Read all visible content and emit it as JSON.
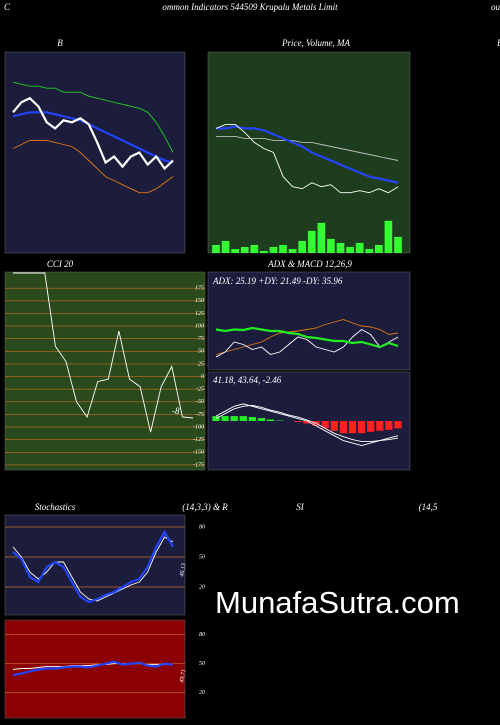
{
  "header": {
    "left": "C",
    "title": "ommon  Indicators 544509 Krupalu  Metals Limit",
    "right": "ou",
    "edge": "B"
  },
  "watermark": "MunafaSutra.com",
  "chart_data": [
    {
      "type": "line",
      "title": "B",
      "ylim": [
        0,
        100
      ],
      "series": [
        {
          "color": "#22cc22",
          "values": [
            85,
            84,
            83,
            83,
            82,
            82,
            80,
            80,
            80,
            78,
            77,
            76,
            75,
            74,
            73,
            72,
            70,
            65,
            58,
            50
          ]
        },
        {
          "color": "#e07a10",
          "values": [
            52,
            54,
            56,
            56,
            56,
            55,
            54,
            53,
            50,
            46,
            42,
            38,
            36,
            34,
            32,
            30,
            30,
            32,
            35,
            38
          ]
        },
        {
          "color": "#2244ff",
          "bold": true,
          "values": [
            68,
            69,
            70,
            70,
            70,
            69,
            68,
            67,
            66,
            64,
            62,
            60,
            58,
            56,
            54,
            52,
            50,
            48,
            46,
            45
          ]
        },
        {
          "color": "#ffffff",
          "bold": true,
          "values": [
            70,
            75,
            77,
            73,
            65,
            62,
            66,
            65,
            67,
            64,
            55,
            45,
            48,
            43,
            48,
            50,
            44,
            48,
            42,
            46
          ]
        }
      ]
    },
    {
      "type": "line",
      "title": "Price, Volume, MA",
      "ylim": [
        0,
        100
      ],
      "series": [
        {
          "color": "#33ff33",
          "style": "bar",
          "values": [
            4,
            6,
            2,
            3,
            4,
            1,
            3,
            4,
            2,
            6,
            11,
            15,
            7,
            5,
            3,
            5,
            2,
            4,
            16,
            8
          ]
        },
        {
          "color": "#bbbbbb",
          "values": [
            58,
            58,
            58,
            57,
            57,
            57,
            56,
            56,
            56,
            55,
            55,
            54,
            53,
            52,
            51,
            50,
            49,
            48,
            47,
            46
          ]
        },
        {
          "color": "#2244ff",
          "bold": true,
          "values": [
            62,
            62,
            63,
            62,
            62,
            61,
            59,
            57,
            55,
            53,
            50,
            48,
            46,
            44,
            42,
            40,
            38,
            37,
            36,
            35
          ]
        },
        {
          "color": "#ffffff",
          "values": [
            62,
            64,
            64,
            60,
            55,
            52,
            50,
            38,
            33,
            32,
            35,
            33,
            34,
            30,
            30,
            31,
            30,
            32,
            30,
            33
          ]
        }
      ]
    },
    {
      "type": "line",
      "title": "CCI 20",
      "ylim": [
        -185,
        207
      ],
      "yticks": [
        175,
        150,
        125,
        100,
        75,
        50,
        25,
        0,
        -25,
        -50,
        -75,
        -100,
        -125,
        -150,
        -175
      ],
      "annotations": [
        "-8"
      ],
      "series": [
        {
          "color": "#ffffff",
          "values": [
            205,
            205,
            205,
            205,
            60,
            30,
            -50,
            -80,
            -10,
            -5,
            90,
            -5,
            -20,
            -110,
            -20,
            20,
            -80,
            -82
          ]
        }
      ]
    },
    {
      "type": "line",
      "title": "ADX  & MACD 12,26,9",
      "ylim": [
        14,
        210
      ],
      "annotations": [
        "ADX: 25.19 +DY: 21.49 -DY: 35.96"
      ],
      "series": [
        {
          "color": "#e07a10",
          "values": [
            45,
            50,
            55,
            60,
            65,
            70,
            80,
            88,
            90,
            92,
            95,
            98,
            105,
            110,
            115,
            108,
            102,
            100,
            95,
            85,
            88
          ]
        },
        {
          "color": "#ffffff",
          "values": [
            40,
            50,
            70,
            65,
            55,
            60,
            45,
            50,
            65,
            80,
            75,
            60,
            55,
            50,
            60,
            80,
            95,
            85,
            60,
            70,
            80
          ]
        },
        {
          "color": "#22ee22",
          "bold": true,
          "values": [
            95,
            92,
            95,
            94,
            98,
            95,
            92,
            92,
            88,
            86,
            80,
            78,
            75,
            72,
            72,
            68,
            70,
            65,
            60,
            68,
            62
          ]
        }
      ]
    },
    {
      "type": "line",
      "ylim": [
        -100,
        100
      ],
      "annotations": [
        "41.18, 43.64, -2.46"
      ],
      "series": [
        {
          "color": "#22ee22",
          "negcolor": "#ff2020",
          "style": "bar",
          "values": [
            10,
            10,
            10,
            10,
            8,
            6,
            3,
            1,
            0,
            -2,
            -5,
            -10,
            -15,
            -20,
            -25,
            -25,
            -25,
            -22,
            -20,
            -18,
            -15
          ]
        },
        {
          "color": "#ffffff",
          "values": [
            5,
            15,
            25,
            30,
            32,
            28,
            22,
            18,
            12,
            8,
            2,
            -5,
            -15,
            -25,
            -32,
            -38,
            -42,
            -42,
            -40,
            -38,
            -35
          ]
        },
        {
          "color": "#ffffff",
          "values": [
            10,
            20,
            30,
            35,
            30,
            25,
            20,
            15,
            10,
            5,
            0,
            -10,
            -20,
            -30,
            -40,
            -45,
            -50,
            -45,
            -40,
            -35,
            -30
          ]
        }
      ]
    },
    {
      "type": "line",
      "title": "Stochastics",
      "subtitle": "(14,3,3) & R",
      "ylim": [
        -8,
        92
      ],
      "yticks": [
        80,
        50,
        20
      ],
      "annotations": [
        "46.13"
      ],
      "series": [
        {
          "color": "#ffffff",
          "values": [
            60,
            50,
            35,
            28,
            35,
            45,
            45,
            30,
            15,
            8,
            6,
            10,
            14,
            18,
            22,
            25,
            35,
            55,
            70,
            65
          ]
        },
        {
          "color": "#2244ff",
          "bold": true,
          "values": [
            55,
            48,
            30,
            25,
            40,
            45,
            40,
            25,
            10,
            5,
            8,
            12,
            15,
            20,
            25,
            28,
            40,
            60,
            75,
            60
          ]
        }
      ]
    },
    {
      "type": "line",
      "title": "SI",
      "subtitle": "(14,5",
      "ylim": [
        -6,
        95
      ],
      "yticks": [
        80,
        50,
        20
      ],
      "annotations": [
        "49.71"
      ],
      "series": [
        {
          "color": "#ffffff",
          "values": [
            44,
            45,
            45,
            46,
            47,
            47,
            47,
            48,
            48,
            48,
            49,
            49,
            50,
            50,
            50,
            50,
            49,
            49,
            49,
            49
          ]
        },
        {
          "color": "#2244ff",
          "bold": true,
          "values": [
            38,
            40,
            42,
            44,
            45,
            45,
            46,
            47,
            47,
            46,
            48,
            50,
            52,
            49,
            50,
            51,
            48,
            47,
            50,
            49
          ]
        }
      ]
    }
  ]
}
